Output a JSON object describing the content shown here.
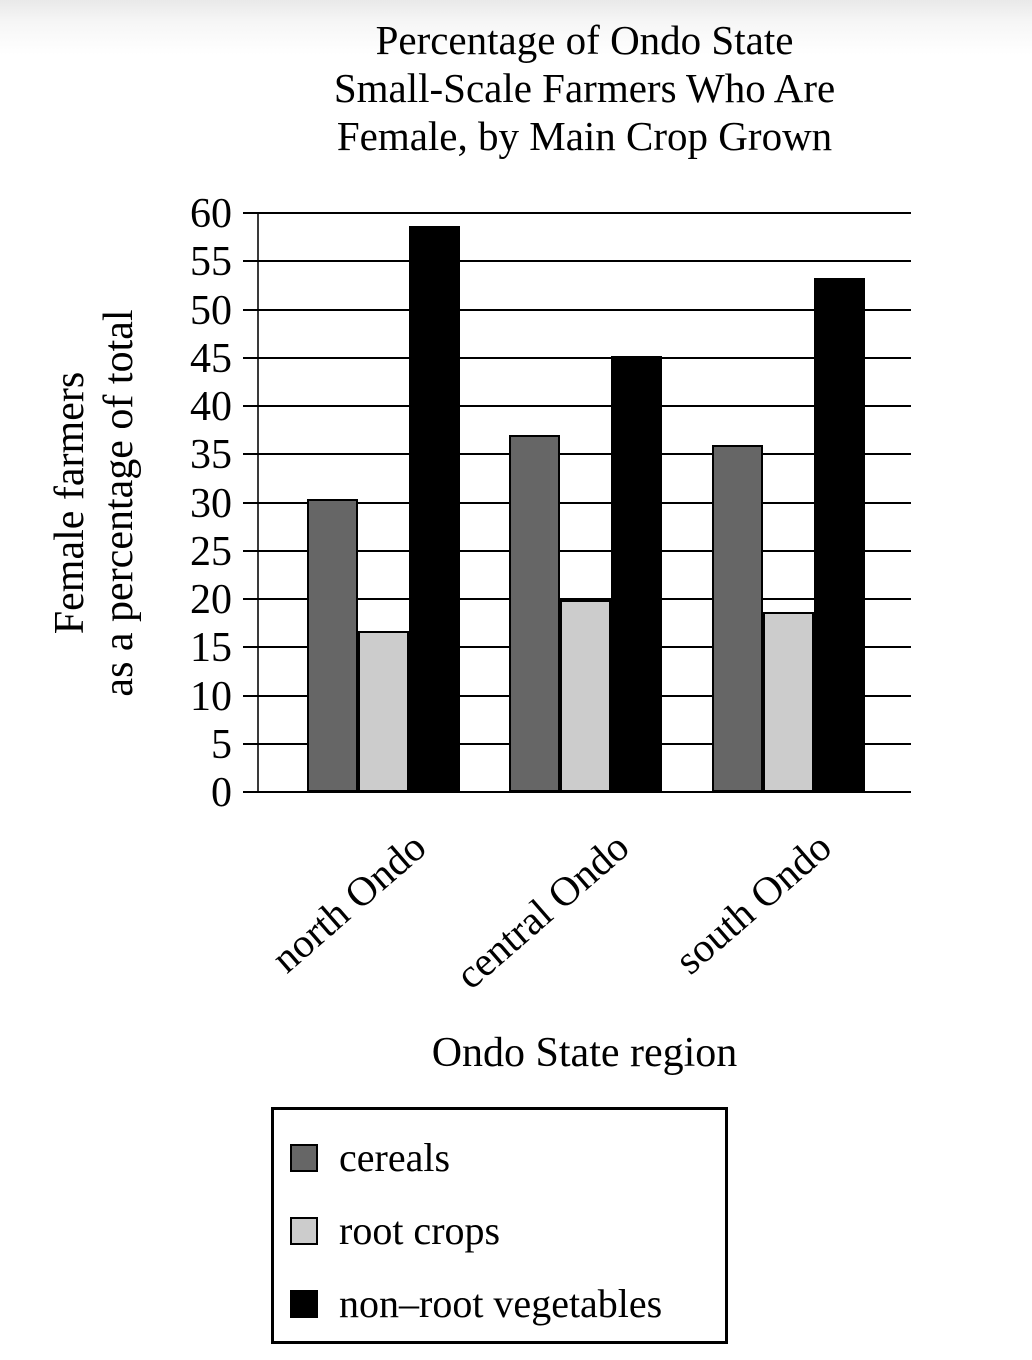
{
  "title": {
    "lines": [
      "Percentage of Ondo State",
      "Small-Scale Farmers Who Are",
      "Female, by Main Crop Grown"
    ]
  },
  "chart_data": {
    "type": "bar",
    "title": "Percentage of Ondo State Small-Scale Farmers Who Are Female, by Main Crop Grown",
    "categories": [
      "north Ondo",
      "central Ondo",
      "south Ondo"
    ],
    "series": [
      {
        "name": "cereals",
        "color": "#666666",
        "values": [
          30.4,
          37.0,
          36.0
        ]
      },
      {
        "name": "root crops",
        "color": "#cccccc",
        "values": [
          16.7,
          19.9,
          18.7
        ]
      },
      {
        "name": "non–root vegetables",
        "color": "#000000",
        "values": [
          58.7,
          45.2,
          53.3
        ]
      }
    ],
    "xlabel": "Ondo State region",
    "ylabel": "Female farmers as a percentage of total",
    "ylabel_lines": [
      "Female farmers",
      "as a percentage of total"
    ],
    "ylim": [
      0,
      60
    ],
    "yticks": [
      0,
      5,
      10,
      15,
      20,
      25,
      30,
      35,
      40,
      45,
      50,
      55,
      60
    ],
    "grid": "horizontal gridlines at every y tick",
    "legend_position": "boxed legend below chart, bottom left",
    "bar_edge_color": "#000000"
  }
}
